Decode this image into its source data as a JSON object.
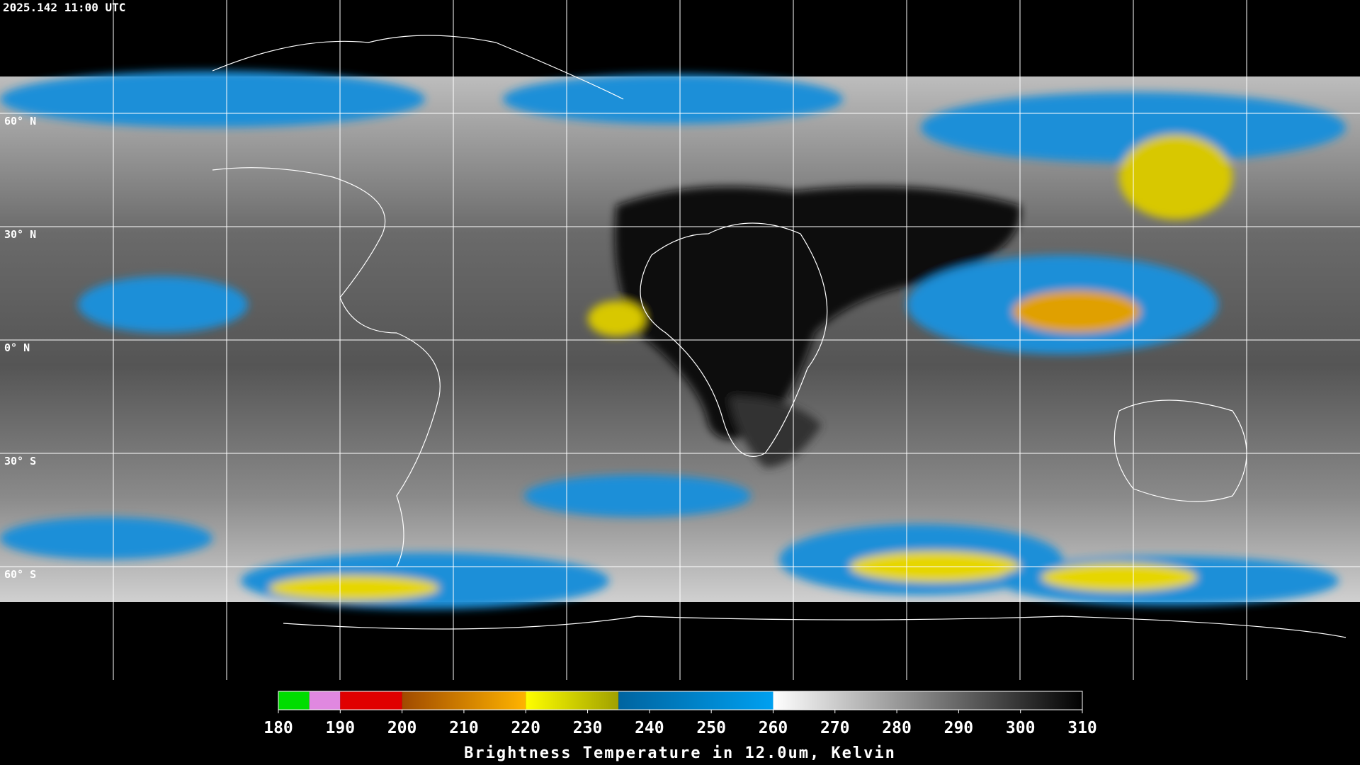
{
  "header": {
    "timestamp": "2025.142 11:00 UTC"
  },
  "map": {
    "ylim": [
      -90,
      90
    ],
    "lat_lines": [
      {
        "value": 60,
        "label": "60° N"
      },
      {
        "value": 30,
        "label": "30° N"
      },
      {
        "value": 0,
        "label": "0° N"
      },
      {
        "value": -30,
        "label": "30° S"
      },
      {
        "value": -60,
        "label": "60° S"
      }
    ],
    "grid_color": "#ffffff"
  },
  "colorbar": {
    "lim": [
      180,
      310
    ],
    "ticks": [
      180,
      190,
      200,
      210,
      220,
      230,
      240,
      250,
      260,
      270,
      280,
      290,
      300,
      310
    ],
    "segments": [
      {
        "range": [
          180,
          185
        ],
        "colors": [
          "#00dd00",
          "#00dd00"
        ]
      },
      {
        "range": [
          185,
          190
        ],
        "colors": [
          "#e088e0",
          "#e088e0"
        ]
      },
      {
        "range": [
          190,
          200
        ],
        "colors": [
          "#e00000",
          "#e00000"
        ]
      },
      {
        "range": [
          200,
          220
        ],
        "colors": [
          "#a04a00",
          "#ffb400"
        ]
      },
      {
        "range": [
          220,
          235
        ],
        "colors": [
          "#ffff00",
          "#a0a000"
        ]
      },
      {
        "range": [
          235,
          260
        ],
        "colors": [
          "#0064a0",
          "#00a0f0"
        ]
      },
      {
        "range": [
          260,
          310
        ],
        "colors": [
          "#ffffff",
          "#000000"
        ]
      }
    ],
    "title": "Brightness Temperature in 12.0um, Kelvin"
  }
}
